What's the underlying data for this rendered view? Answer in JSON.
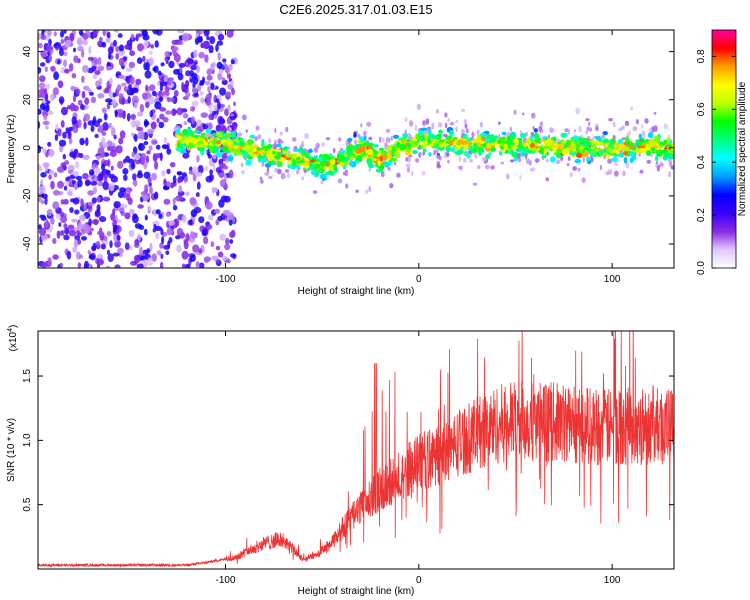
{
  "page_title": "C2E6.2025.317.01.03.E15",
  "chart_data": [
    {
      "type": "heatmap",
      "xlabel": "Height of straight line (km)",
      "ylabel": "Frequency (Hz)",
      "xlim": [
        -197,
        132
      ],
      "ylim": [
        -50,
        49
      ],
      "xticks": [
        -100,
        0,
        100
      ],
      "yticks": [
        -40,
        -20,
        0,
        20,
        40
      ],
      "colorbar": {
        "label": "Normalized spectral amplitude",
        "range": [
          0.0,
          0.9
        ],
        "ticks": [
          0.0,
          0.2,
          0.4,
          0.6,
          0.8
        ],
        "colormap": [
          "#ffffff",
          "#e0c8ff",
          "#8a2be2",
          "#3a00ff",
          "#0000ff",
          "#00a0ff",
          "#00ffff",
          "#00ff80",
          "#00ff00",
          "#c0ff00",
          "#ffff00",
          "#ffa000",
          "#ff0000",
          "#ff00a0"
        ]
      },
      "ridge": [
        {
          "x": -120,
          "f": 3
        },
        {
          "x": -100,
          "f": 2
        },
        {
          "x": -80,
          "f": -2
        },
        {
          "x": -60,
          "f": -5
        },
        {
          "x": -50,
          "f": -8
        },
        {
          "x": -40,
          "f": -5
        },
        {
          "x": -30,
          "f": 0
        },
        {
          "x": -20,
          "f": -5
        },
        {
          "x": -10,
          "f": 0
        },
        {
          "x": 0,
          "f": 3
        },
        {
          "x": 20,
          "f": 2
        },
        {
          "x": 40,
          "f": 1
        },
        {
          "x": 60,
          "f": 1
        },
        {
          "x": 80,
          "f": 0
        },
        {
          "x": 100,
          "f": 0
        },
        {
          "x": 120,
          "f": 1
        },
        {
          "x": 132,
          "f": 0
        }
      ]
    },
    {
      "type": "line",
      "xlabel": "Height of straight line (km)",
      "ylabel": "SNR (10 * v/v)",
      "y_multiplier": "(x10",
      "y_multiplier_exp": "4",
      "xlim": [
        -197,
        132
      ],
      "ylim": [
        0.0,
        1.85
      ],
      "xticks": [
        -100,
        0,
        100
      ],
      "yticks": [
        0.5,
        1.0,
        1.5
      ],
      "ytick_labels": [
        "0.5",
        "1.0",
        "1.5"
      ],
      "color": "#ee3333",
      "envelope": [
        {
          "x": -197,
          "y": 0.03
        },
        {
          "x": -120,
          "y": 0.03
        },
        {
          "x": -110,
          "y": 0.05
        },
        {
          "x": -95,
          "y": 0.09
        },
        {
          "x": -80,
          "y": 0.2
        },
        {
          "x": -72,
          "y": 0.23
        },
        {
          "x": -66,
          "y": 0.17
        },
        {
          "x": -60,
          "y": 0.07
        },
        {
          "x": -52,
          "y": 0.12
        },
        {
          "x": -45,
          "y": 0.2
        },
        {
          "x": -38,
          "y": 0.35
        },
        {
          "x": -28,
          "y": 0.5
        },
        {
          "x": -20,
          "y": 0.62
        },
        {
          "x": -10,
          "y": 0.72
        },
        {
          "x": 0,
          "y": 0.83
        },
        {
          "x": 10,
          "y": 0.88
        },
        {
          "x": 20,
          "y": 0.98
        },
        {
          "x": 30,
          "y": 1.05
        },
        {
          "x": 40,
          "y": 1.12
        },
        {
          "x": 50,
          "y": 1.15
        },
        {
          "x": 60,
          "y": 1.15
        },
        {
          "x": 80,
          "y": 1.13
        },
        {
          "x": 100,
          "y": 1.1
        },
        {
          "x": 120,
          "y": 1.12
        },
        {
          "x": 132,
          "y": 1.1
        }
      ]
    }
  ]
}
